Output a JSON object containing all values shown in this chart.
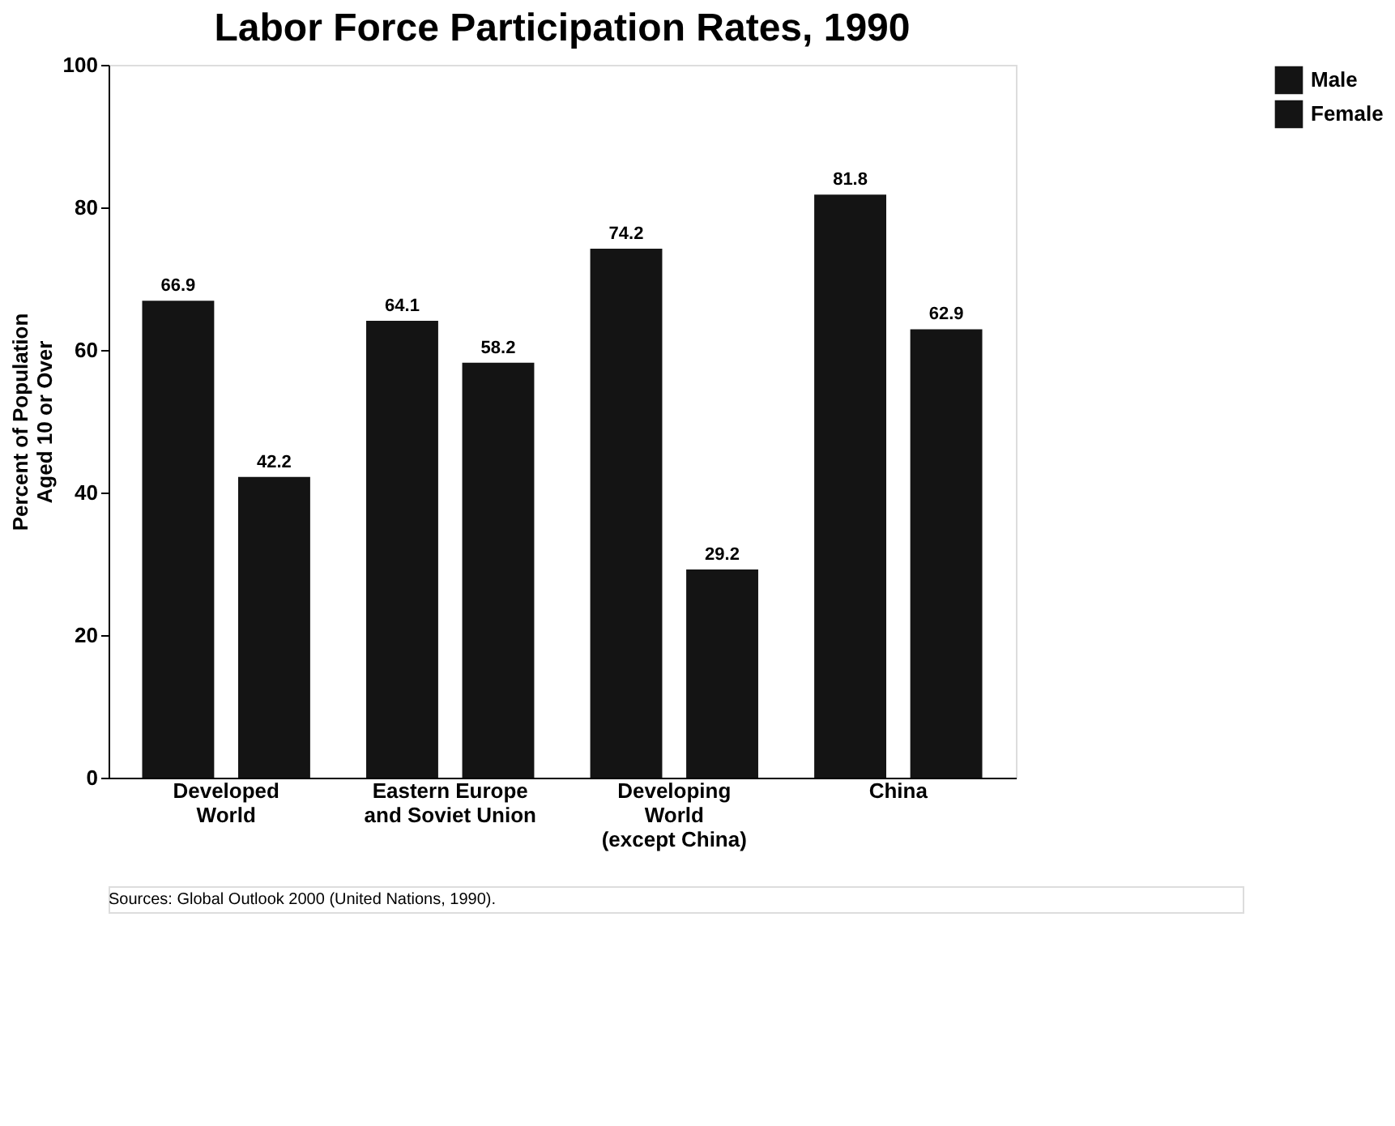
{
  "chart_data": {
    "type": "bar",
    "title": "Labor Force Participation Rates, 1990",
    "ylabel": "Percent of Population\nAged 10 or Over",
    "categories": [
      "Developed\nWorld",
      "Eastern Europe\nand Soviet Union",
      "Developing\nWorld\n(except China)",
      "China"
    ],
    "series": [
      {
        "name": "Male",
        "color": "#141414",
        "values": [
          66.9,
          64.1,
          74.2,
          81.8
        ]
      },
      {
        "name": "Female",
        "color": "#141414",
        "values": [
          42.2,
          58.2,
          29.2,
          62.9
        ]
      }
    ],
    "ylim": [
      0,
      100
    ],
    "yticks": [
      0,
      20,
      40,
      60,
      80,
      100
    ],
    "grid": false,
    "legend": "right",
    "data_labels": true,
    "annotations": [
      "Sources: Global Outlook 2000 (United Nations, 1990)."
    ]
  }
}
